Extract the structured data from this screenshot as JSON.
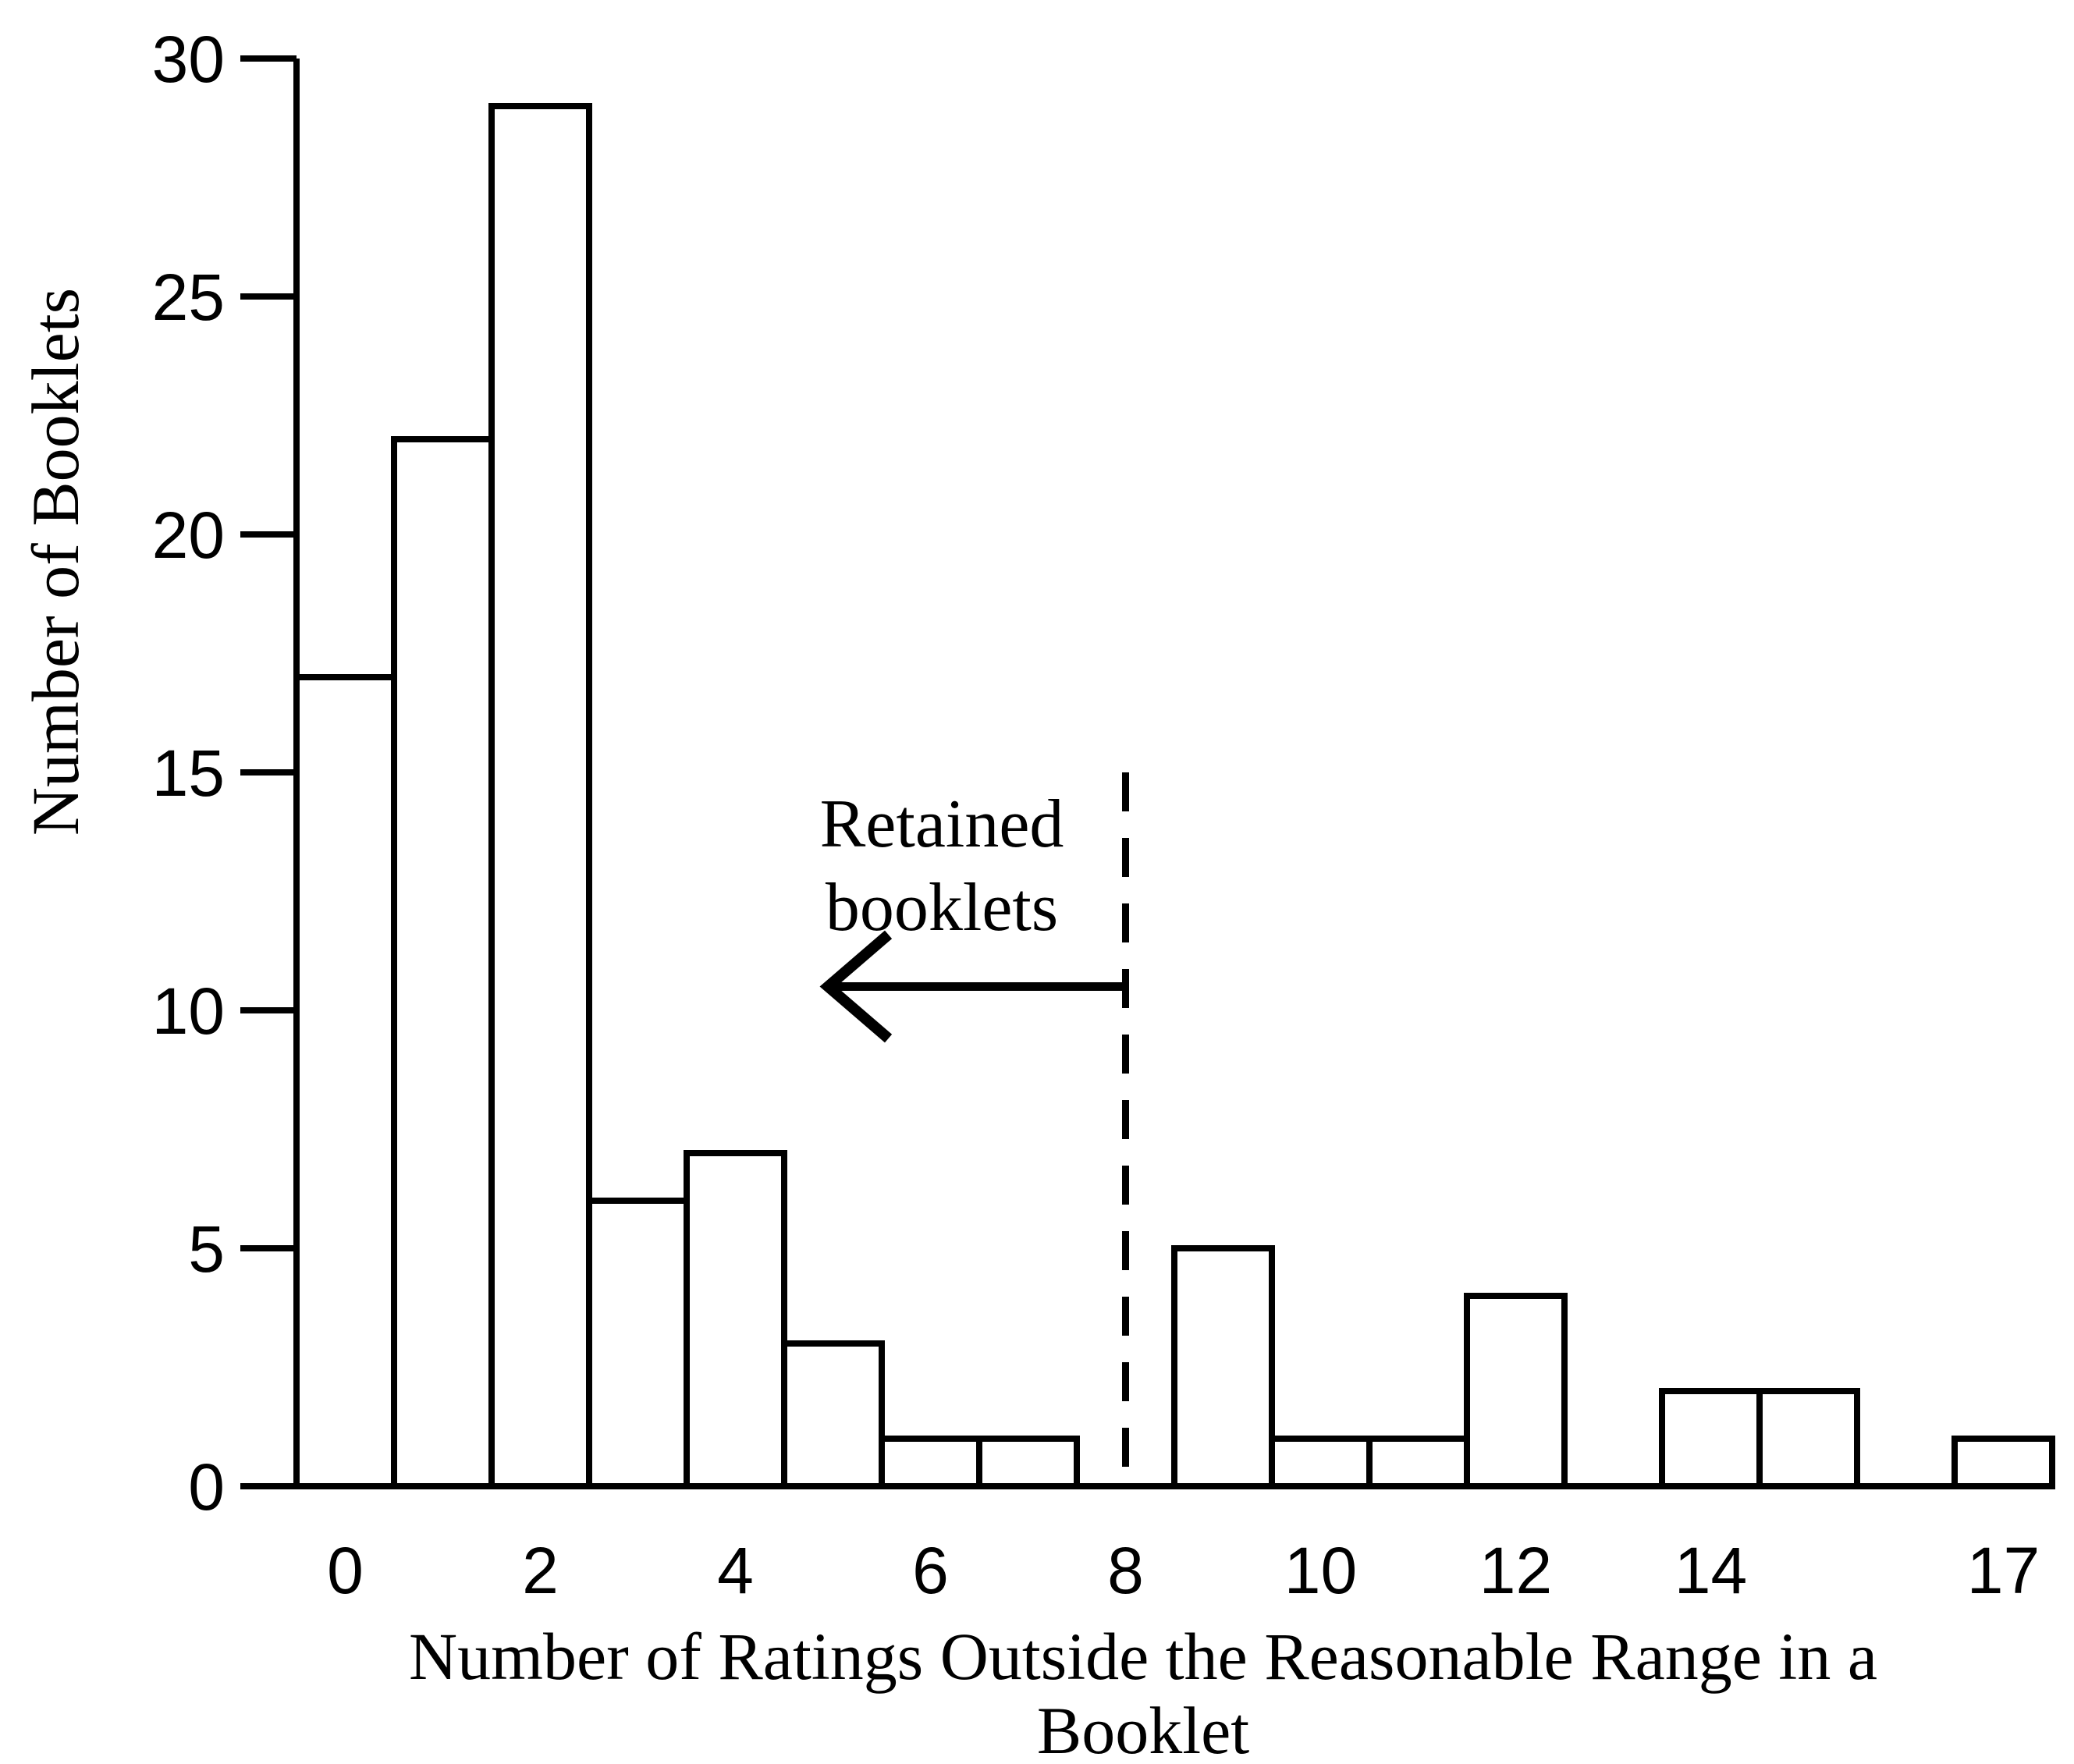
{
  "colors": {
    "line": "#000000",
    "bar_fill": "#ffffff",
    "background": "#ffffff"
  },
  "chart_data": {
    "type": "bar",
    "subtype": "histogram",
    "title": "",
    "xlabel": "Number of Ratings Outside the Reasonable Range in a Booklet",
    "xlabel_lines": [
      "Number of Ratings Outside the Reasonable Range in a",
      "Booklet"
    ],
    "ylabel": "Number of Booklets",
    "x": [
      0,
      1,
      2,
      3,
      4,
      5,
      6,
      7,
      8,
      9,
      10,
      11,
      12,
      13,
      14,
      15,
      16,
      17
    ],
    "values": [
      17,
      22,
      29,
      6,
      7,
      3,
      1,
      1,
      0,
      5,
      1,
      1,
      4,
      0,
      2,
      2,
      0,
      1
    ],
    "ylim": [
      0,
      30
    ],
    "xlim": [
      -0.5,
      17.5
    ],
    "y_ticks": [
      0,
      5,
      10,
      15,
      20,
      25,
      30
    ],
    "x_tick_labels": [
      "0",
      "2",
      "4",
      "6",
      "8",
      "10",
      "12",
      "14",
      "17"
    ],
    "x_tick_values": [
      0,
      2,
      4,
      6,
      8,
      10,
      12,
      14,
      17
    ],
    "grid": false,
    "legend": "none",
    "bar_width": 1,
    "annotation": {
      "lines": [
        "Retained",
        "booklets"
      ],
      "arrow_direction": "left",
      "cutoff_x": 8,
      "cutoff_line_style": "dashed",
      "cutoff_line_top_value": 15,
      "arrow_y_value": 10.5,
      "arrow_tip_x_value": 4.95
    }
  }
}
